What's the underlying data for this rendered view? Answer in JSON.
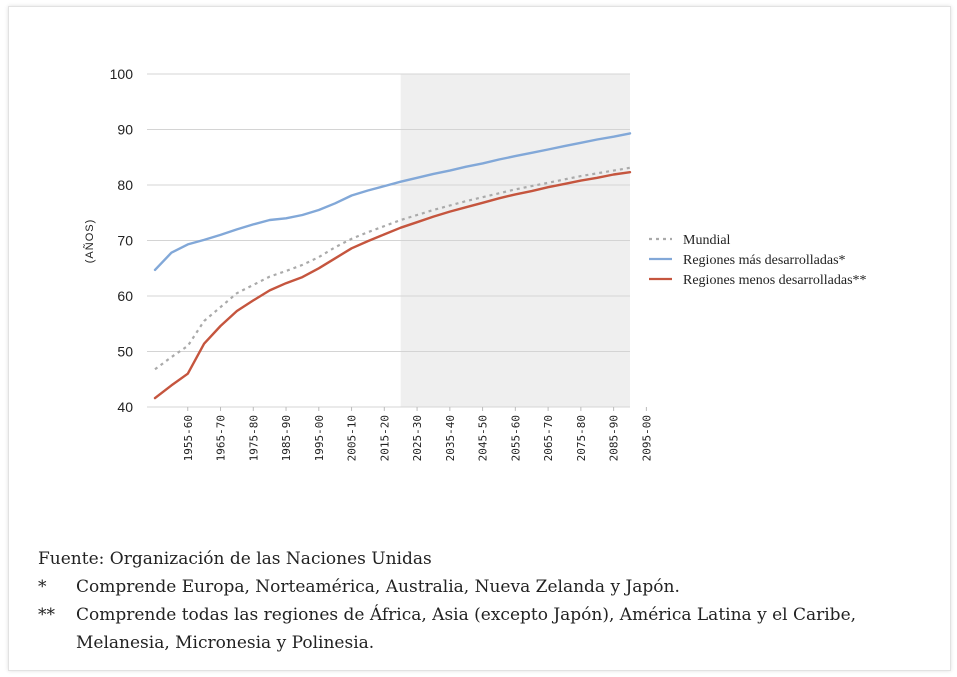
{
  "chart_data": {
    "type": "line",
    "ylabel": "(AÑOS)",
    "ylim": [
      40,
      100
    ],
    "yticks": [
      "100",
      "90",
      "80",
      "70",
      "60",
      "50",
      "40"
    ],
    "categories": [
      "1955-60",
      "1965-70",
      "1975-80",
      "1985-90",
      "1995-00",
      "2005-10",
      "2015-20",
      "2025-30",
      "2035-40",
      "2045-50",
      "2055-60",
      "2065-70",
      "2075-80",
      "2085-90",
      "2095-00"
    ],
    "grid": true,
    "projection_shading_from": "2025-30",
    "legend_position": "right",
    "x": [
      1950,
      1955,
      1960,
      1965,
      1970,
      1975,
      1980,
      1985,
      1990,
      1995,
      2000,
      2005,
      2010,
      2015,
      2020,
      2025,
      2030,
      2035,
      2040,
      2045,
      2050,
      2055,
      2060,
      2065,
      2070,
      2075,
      2080,
      2085,
      2090,
      2095
    ],
    "series": [
      {
        "name": "Mundial",
        "color": "#aaaaaa",
        "style": "dotted",
        "values": [
          46.8,
          49.0,
          51.0,
          55.5,
          58.0,
          60.5,
          62.0,
          63.5,
          64.5,
          65.6,
          67.0,
          68.8,
          70.3,
          71.5,
          72.6,
          73.7,
          74.6,
          75.5,
          76.3,
          77.1,
          77.8,
          78.5,
          79.2,
          79.8,
          80.4,
          81.0,
          81.6,
          82.1,
          82.6,
          83.1
        ]
      },
      {
        "name": "Regiones más desarrolladas*",
        "color": "#82a8d8",
        "style": "solid",
        "values": [
          64.7,
          67.8,
          69.3,
          70.1,
          71.0,
          72.0,
          72.9,
          73.7,
          74.0,
          74.6,
          75.5,
          76.7,
          78.1,
          79.0,
          79.8,
          80.6,
          81.3,
          82.0,
          82.6,
          83.3,
          83.9,
          84.6,
          85.2,
          85.8,
          86.4,
          87.0,
          87.6,
          88.2,
          88.7,
          89.3
        ]
      },
      {
        "name": "Regiones menos desarrolladas**",
        "color": "#c5553e",
        "style": "solid",
        "values": [
          41.6,
          43.9,
          46.0,
          51.4,
          54.6,
          57.3,
          59.2,
          61.0,
          62.3,
          63.4,
          65.0,
          66.8,
          68.6,
          69.9,
          71.1,
          72.3,
          73.3,
          74.3,
          75.2,
          76.0,
          76.8,
          77.6,
          78.3,
          78.9,
          79.6,
          80.2,
          80.8,
          81.3,
          81.9,
          82.3
        ]
      }
    ]
  },
  "notes": {
    "source": "Fuente: Organización de las Naciones Unidas",
    "note1_mark": "*",
    "note1_text": "Comprende Europa, Norteamérica, Australia, Nueva Zelanda y Japón.",
    "note2_mark": "**",
    "note2_text": "Comprende todas las regiones de África, Asia (excepto Japón), América Latina y el Caribe, Melanesia, Micronesia y Polinesia."
  }
}
